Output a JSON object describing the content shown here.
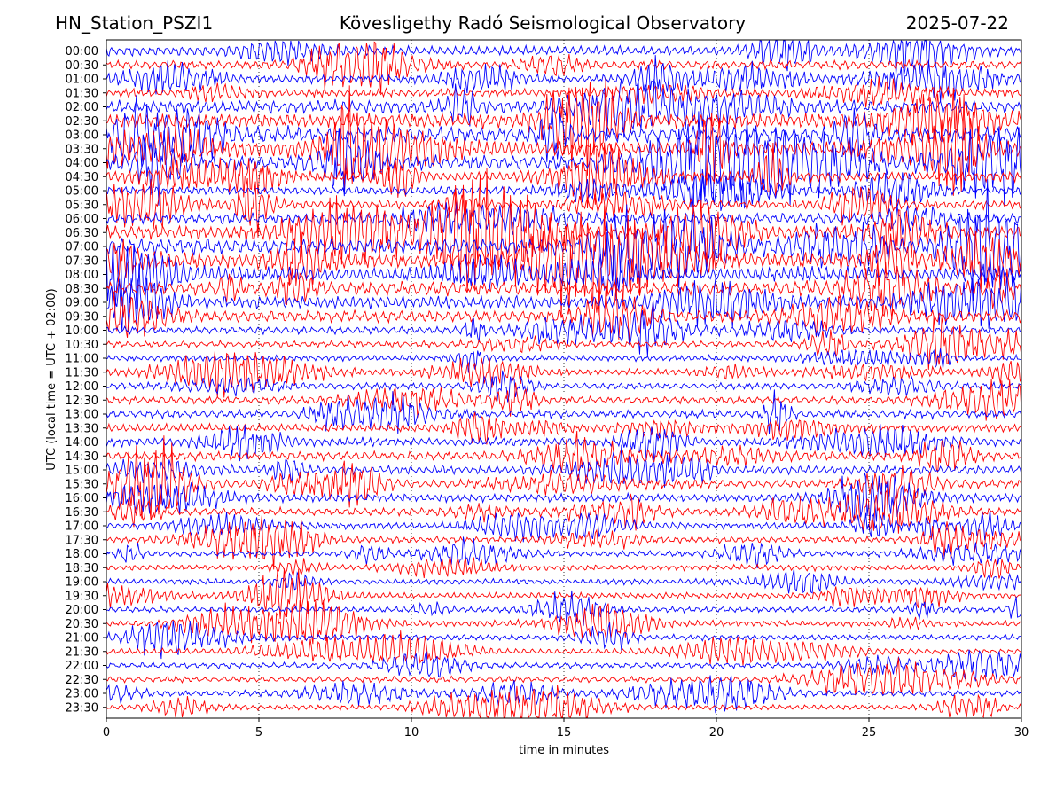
{
  "header": {
    "station": "HN_Station_PSZI1",
    "observatory": "Kövesligethy Radó Seismological Observatory",
    "date": "2025-07-22"
  },
  "chart_data": {
    "type": "line",
    "title": "Kövesligethy Radó Seismological Observatory",
    "xlabel": "time in minutes",
    "ylabel": "UTC (local time = UTC + 02:00)",
    "xlim": [
      0,
      30
    ],
    "x_ticks": [
      0,
      5,
      10,
      15,
      20,
      25,
      30
    ],
    "x_tick_labels": [
      "0",
      "5",
      "10",
      "15",
      "20",
      "25",
      "30"
    ],
    "grid": "vertical dotted at x ticks",
    "row_labels": [
      "00:00",
      "00:30",
      "01:00",
      "01:30",
      "02:00",
      "02:30",
      "03:00",
      "03:30",
      "04:00",
      "04:30",
      "05:00",
      "05:30",
      "06:00",
      "06:30",
      "07:00",
      "07:30",
      "08:00",
      "08:30",
      "09:00",
      "09:30",
      "10:00",
      "10:30",
      "11:00",
      "11:30",
      "12:00",
      "12:30",
      "13:00",
      "13:30",
      "14:00",
      "14:30",
      "15:00",
      "15:30",
      "16:00",
      "16:30",
      "17:00",
      "17:30",
      "18:00",
      "18:30",
      "19:00",
      "19:30",
      "20:00",
      "20:30",
      "21:00",
      "21:30",
      "22:00",
      "22:30",
      "23:00",
      "23:30"
    ],
    "series_colors": [
      "#0000ff",
      "#ff0000"
    ],
    "row_amplitude_scale": [
      1.8,
      1.6,
      1.5,
      1.6,
      2.4,
      2.8,
      3.0,
      3.0,
      2.8,
      2.0,
      1.6,
      1.6,
      2.0,
      2.6,
      3.0,
      3.0,
      2.8,
      2.6,
      2.4,
      2.2,
      1.4,
      1.2,
      1.1,
      1.2,
      1.3,
      1.4,
      1.5,
      1.5,
      1.6,
      1.6,
      1.6,
      1.6,
      1.5,
      1.4,
      1.2,
      1.2,
      1.1,
      1.1,
      1.1,
      1.1,
      1.1,
      1.1,
      1.1,
      1.1,
      1.1,
      1.1,
      1.1,
      1.0
    ]
  }
}
